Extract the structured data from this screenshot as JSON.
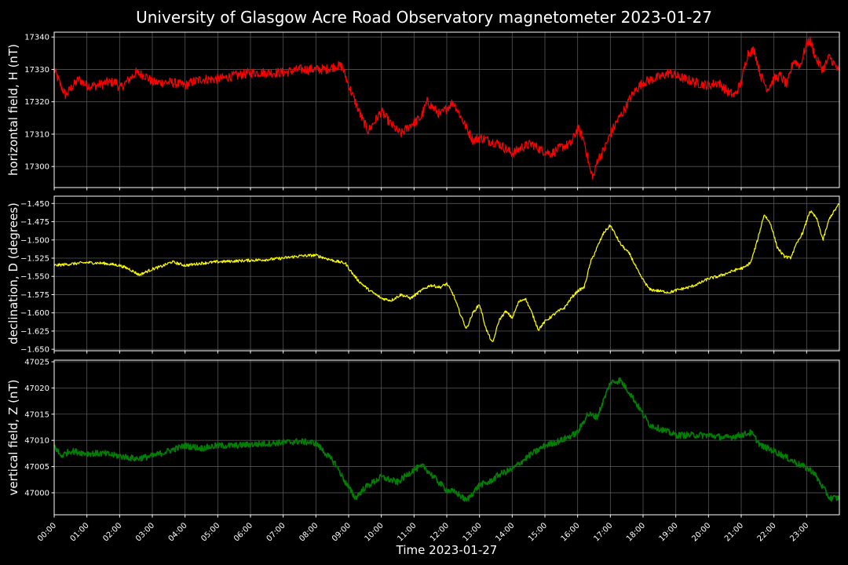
{
  "chart_data": {
    "type": "line",
    "title": "University of Glasgow Acre Road Observatory magnetometer 2023-01-27",
    "xlabel": "Time 2023-01-27",
    "x_ticks": [
      "00:00",
      "01:00",
      "02:00",
      "03:00",
      "04:00",
      "05:00",
      "06:00",
      "07:00",
      "08:00",
      "09:00",
      "10:00",
      "11:00",
      "12:00",
      "13:00",
      "14:00",
      "15:00",
      "16:00",
      "17:00",
      "18:00",
      "19:00",
      "20:00",
      "21:00",
      "22:00",
      "23:00"
    ],
    "x_range_hours": [
      0,
      24
    ],
    "grid": true,
    "panels": [
      {
        "ylabel": "horizontal field, H (nT)",
        "color": "#ff0000",
        "ylim": [
          17293.5,
          17341.5
        ],
        "yticks": [
          17300,
          17310,
          17320,
          17330,
          17340
        ],
        "ytick_labels": [
          "17300",
          "17310",
          "17320",
          "17330",
          "17340"
        ],
        "noise": 1.5,
        "x": [
          0,
          0.2,
          0.35,
          0.5,
          0.75,
          1,
          1.3,
          1.6,
          1.9,
          2,
          2.2,
          2.5,
          2.8,
          3,
          3.3,
          3.6,
          4,
          4.2,
          4.5,
          5,
          5.5,
          6,
          6.5,
          7,
          7.5,
          8,
          8.3,
          8.6,
          8.8,
          9,
          9.2,
          9.4,
          9.6,
          9.8,
          10,
          10.3,
          10.6,
          10.9,
          11.2,
          11.4,
          11.6,
          11.8,
          12,
          12.2,
          12.4,
          12.6,
          12.8,
          13,
          13.3,
          13.6,
          14,
          14.3,
          14.6,
          14.9,
          15.2,
          15.5,
          15.8,
          16,
          16.2,
          16.4,
          16.5,
          16.6,
          16.8,
          17,
          17.2,
          17.4,
          17.6,
          17.8,
          18,
          18.3,
          18.6,
          18.8,
          19,
          19.3,
          19.6,
          20,
          20.3,
          20.6,
          20.8,
          21,
          21.2,
          21.4,
          21.6,
          21.8,
          22,
          22.2,
          22.4,
          22.6,
          22.8,
          23,
          23.1,
          23.3,
          23.5,
          23.7,
          24
        ],
        "y": [
          17330,
          17325,
          17322,
          17324,
          17327,
          17325,
          17325,
          17326,
          17326,
          17324,
          17326,
          17329,
          17328,
          17326,
          17326,
          17326,
          17325,
          17326,
          17327,
          17327,
          17328,
          17329,
          17329,
          17329,
          17330,
          17330,
          17330,
          17331,
          17331,
          17325,
          17320,
          17315,
          17311,
          17314,
          17317,
          17313,
          17310,
          17313,
          17315,
          17320,
          17318,
          17316,
          17318,
          17320,
          17316,
          17312,
          17308,
          17309,
          17308,
          17307,
          17304,
          17306,
          17307,
          17305,
          17304,
          17306,
          17307,
          17312,
          17308,
          17298,
          17297,
          17302,
          17305,
          17310,
          17314,
          17317,
          17321,
          17324,
          17326,
          17327,
          17328,
          17329,
          17328,
          17327,
          17326,
          17325,
          17326,
          17323,
          17322,
          17326,
          17335,
          17336,
          17328,
          17324,
          17327,
          17328,
          17325,
          17333,
          17331,
          17338,
          17339,
          17333,
          17330,
          17334,
          17329
        ],
        "tick_label_decimals": 0
      },
      {
        "ylabel": "declination, D (degrees)",
        "color": "#ffff00",
        "ylim": [
          -1.652,
          -1.44
        ],
        "yticks": [
          -1.65,
          -1.625,
          -1.6,
          -1.575,
          -1.55,
          -1.525,
          -1.5,
          -1.475,
          -1.45
        ],
        "ytick_labels": [
          "−1.650",
          "−1.625",
          "−1.600",
          "−1.575",
          "−1.550",
          "−1.525",
          "−1.500",
          "−1.475",
          "−1.450"
        ],
        "noise": 0.002,
        "x": [
          0,
          0.5,
          1,
          1.5,
          2,
          2.3,
          2.6,
          3,
          3.3,
          3.6,
          4,
          4.5,
          5,
          5.5,
          6,
          6.5,
          7,
          7.5,
          8,
          8.5,
          8.9,
          9.1,
          9.3,
          9.6,
          10,
          10.3,
          10.6,
          10.9,
          11.2,
          11.5,
          11.8,
          12,
          12.2,
          12.4,
          12.6,
          12.8,
          13,
          13.2,
          13.4,
          13.6,
          13.8,
          14,
          14.2,
          14.4,
          14.6,
          14.8,
          15,
          15.2,
          15.4,
          15.6,
          15.8,
          16,
          16.2,
          16.4,
          16.6,
          16.8,
          17,
          17.3,
          17.6,
          17.9,
          18.2,
          18.5,
          18.8,
          19.1,
          19.4,
          19.7,
          20,
          20.3,
          20.6,
          20.9,
          21.1,
          21.3,
          21.5,
          21.7,
          21.9,
          22.1,
          22.3,
          22.5,
          22.7,
          22.9,
          23.1,
          23.3,
          23.5,
          23.7,
          24
        ],
        "y": [
          -1.535,
          -1.533,
          -1.531,
          -1.532,
          -1.535,
          -1.54,
          -1.548,
          -1.54,
          -1.536,
          -1.53,
          -1.535,
          -1.532,
          -1.53,
          -1.529,
          -1.528,
          -1.527,
          -1.525,
          -1.522,
          -1.521,
          -1.528,
          -1.532,
          -1.545,
          -1.556,
          -1.568,
          -1.58,
          -1.583,
          -1.575,
          -1.58,
          -1.57,
          -1.562,
          -1.565,
          -1.56,
          -1.575,
          -1.6,
          -1.622,
          -1.6,
          -1.588,
          -1.622,
          -1.642,
          -1.61,
          -1.598,
          -1.607,
          -1.585,
          -1.58,
          -1.6,
          -1.623,
          -1.612,
          -1.605,
          -1.598,
          -1.593,
          -1.58,
          -1.57,
          -1.565,
          -1.53,
          -1.51,
          -1.49,
          -1.48,
          -1.505,
          -1.52,
          -1.548,
          -1.568,
          -1.57,
          -1.572,
          -1.568,
          -1.565,
          -1.56,
          -1.553,
          -1.55,
          -1.545,
          -1.54,
          -1.538,
          -1.53,
          -1.5,
          -1.465,
          -1.478,
          -1.51,
          -1.522,
          -1.525,
          -1.505,
          -1.488,
          -1.46,
          -1.47,
          -1.5,
          -1.47,
          -1.45
        ],
        "tick_label_decimals": 3
      },
      {
        "ylabel": "vertical field, Z (nT)",
        "color": "#008000",
        "ylim": [
          46995.8,
          47025.3
        ],
        "yticks": [
          47000,
          47005,
          47010,
          47015,
          47020,
          47025
        ],
        "ytick_labels": [
          "47000",
          "47005",
          "47010",
          "47015",
          "47020",
          "47025"
        ],
        "noise": 0.6,
        "x": [
          0,
          0.2,
          0.5,
          1,
          1.5,
          2,
          2.5,
          3,
          3.5,
          4,
          4.5,
          5,
          5.5,
          6,
          6.5,
          7,
          7.5,
          8,
          8.3,
          8.6,
          8.9,
          9.2,
          9.5,
          10,
          10.5,
          11,
          11.3,
          11.6,
          12,
          12.3,
          12.6,
          13,
          13.3,
          13.6,
          14,
          14.5,
          15,
          15.5,
          16,
          16.3,
          16.6,
          17,
          17.3,
          17.6,
          17.9,
          18.2,
          18.6,
          19,
          19.5,
          20,
          20.5,
          21,
          21.3,
          21.6,
          22,
          22.3,
          22.6,
          22.9,
          23.2,
          23.5,
          23.7,
          24
        ],
        "y": [
          47009,
          47007,
          47008,
          47007.5,
          47007.5,
          47007,
          47006.5,
          47007,
          47008,
          47009,
          47008.5,
          47009,
          47009,
          47009.2,
          47009.4,
          47009.6,
          47009.8,
          47009.5,
          47007.5,
          47005.5,
          47002,
          46999,
          47001,
          47003,
          47002,
          47004.5,
          47005,
          47003,
          47000.5,
          47000,
          46998.5,
          47001.5,
          47002,
          47003.5,
          47004.5,
          47007,
          47009,
          47010,
          47011.5,
          47015,
          47014.5,
          47021,
          47021.5,
          47019,
          47016,
          47013,
          47012,
          47011,
          47011,
          47011,
          47010.5,
          47011,
          47011.5,
          47009,
          47008,
          47007,
          47006,
          47005,
          47004,
          47001,
          46999,
          46999
        ]
      }
    ]
  }
}
